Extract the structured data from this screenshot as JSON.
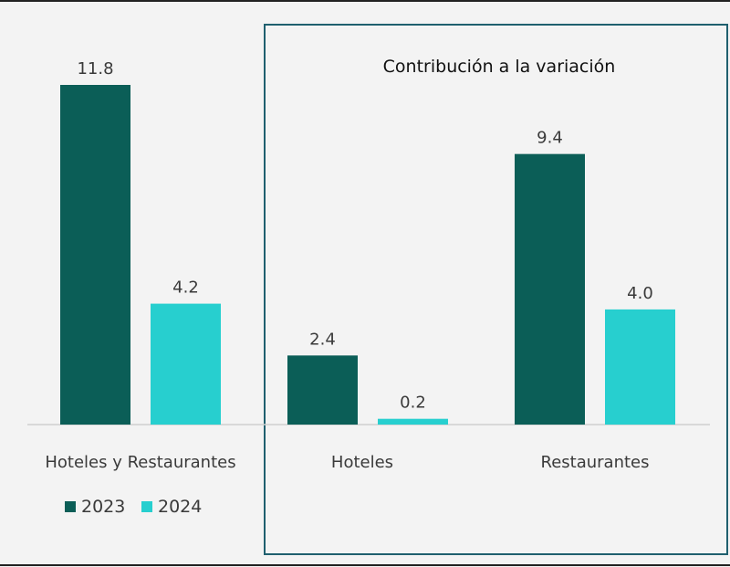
{
  "chart_data": {
    "type": "bar",
    "title": "Contribución a la variación",
    "categories": [
      "Hoteles y Restaurantes",
      "Hoteles",
      "Restaurantes"
    ],
    "series": [
      {
        "name": "2023",
        "values": [
          11.8,
          2.4,
          9.4
        ]
      },
      {
        "name": "2024",
        "values": [
          4.2,
          0.2,
          4.0
        ]
      }
    ],
    "value_labels": [
      [
        "11.8",
        "2.4",
        "9.4"
      ],
      [
        "4.2",
        "0.2",
        "4.0"
      ]
    ],
    "ylim": [
      0,
      11.8
    ],
    "grid": false,
    "legend_position": "bottom-left",
    "colors": {
      "2023": "#0b5e57",
      "2024": "#27cfcf",
      "frame": "#1f5f6e",
      "background": "#f3f3f3"
    }
  }
}
